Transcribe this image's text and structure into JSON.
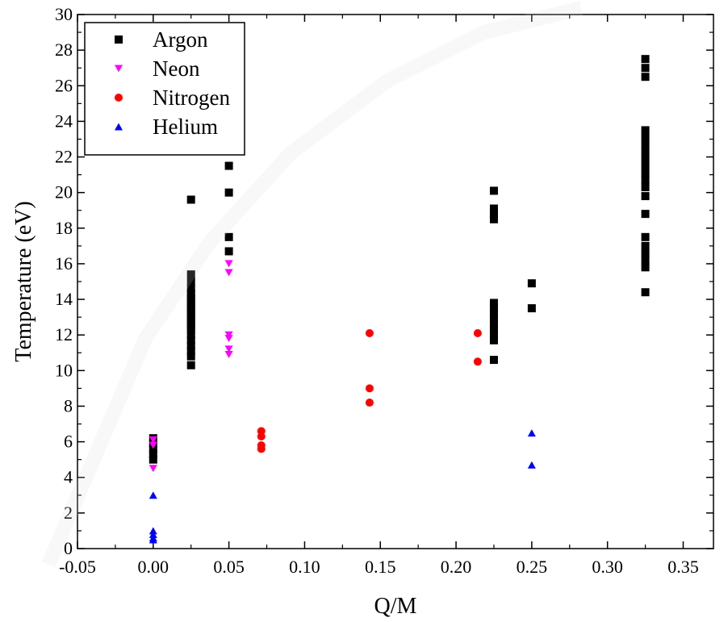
{
  "chart_data": {
    "type": "scatter",
    "xlabel": "Q/M",
    "ylabel": "Temperature (eV)",
    "xlim": [
      -0.05,
      0.37
    ],
    "ylim": [
      0,
      30
    ],
    "x_ticks": [
      -0.05,
      0.0,
      0.05,
      0.1,
      0.15,
      0.2,
      0.25,
      0.3,
      0.35
    ],
    "x_tick_labels": [
      "-0.05",
      "0.00",
      "0.05",
      "0.10",
      "0.15",
      "0.20",
      "0.25",
      "0.30",
      "0.35"
    ],
    "y_ticks": [
      0,
      2,
      4,
      6,
      8,
      10,
      12,
      14,
      16,
      18,
      20,
      22,
      24,
      26,
      28,
      30
    ],
    "y_tick_labels": [
      "0",
      "2",
      "4",
      "6",
      "8",
      "10",
      "12",
      "14",
      "16",
      "18",
      "20",
      "22",
      "24",
      "26",
      "28",
      "30"
    ],
    "grid": false,
    "legend_position": "top-left",
    "series": [
      {
        "name": "Argon",
        "marker": "square",
        "color": "#000000",
        "points": [
          [
            0.025,
            19.6
          ],
          [
            0.025,
            15.4
          ],
          [
            0.025,
            15.0
          ],
          [
            0.025,
            14.6
          ],
          [
            0.025,
            14.3
          ],
          [
            0.025,
            14.1
          ],
          [
            0.025,
            13.9
          ],
          [
            0.025,
            13.7
          ],
          [
            0.025,
            13.5
          ],
          [
            0.025,
            13.3
          ],
          [
            0.025,
            13.1
          ],
          [
            0.025,
            12.9
          ],
          [
            0.025,
            12.7
          ],
          [
            0.025,
            12.5
          ],
          [
            0.025,
            12.3
          ],
          [
            0.025,
            12.0
          ],
          [
            0.025,
            11.7
          ],
          [
            0.025,
            11.4
          ],
          [
            0.025,
            11.1
          ],
          [
            0.025,
            10.8
          ],
          [
            0.025,
            10.3
          ],
          [
            0.05,
            21.5
          ],
          [
            0.05,
            20.0
          ],
          [
            0.05,
            17.5
          ],
          [
            0.05,
            16.7
          ],
          [
            0.0,
            6.2
          ],
          [
            0.0,
            5.9
          ],
          [
            0.0,
            5.6
          ],
          [
            0.0,
            5.3
          ],
          [
            0.0,
            5.0
          ],
          [
            0.225,
            20.1
          ],
          [
            0.225,
            19.1
          ],
          [
            0.225,
            18.8
          ],
          [
            0.225,
            18.5
          ],
          [
            0.225,
            13.8
          ],
          [
            0.225,
            13.5
          ],
          [
            0.225,
            13.2
          ],
          [
            0.225,
            12.9
          ],
          [
            0.225,
            12.6
          ],
          [
            0.225,
            12.3
          ],
          [
            0.225,
            12.0
          ],
          [
            0.225,
            11.7
          ],
          [
            0.225,
            10.6
          ],
          [
            0.25,
            14.9
          ],
          [
            0.25,
            13.5
          ],
          [
            0.325,
            27.5
          ],
          [
            0.325,
            27.0
          ],
          [
            0.325,
            26.5
          ],
          [
            0.325,
            23.5
          ],
          [
            0.325,
            23.1
          ],
          [
            0.325,
            22.7
          ],
          [
            0.325,
            22.3
          ],
          [
            0.325,
            21.9
          ],
          [
            0.325,
            21.5
          ],
          [
            0.325,
            21.1
          ],
          [
            0.325,
            20.7
          ],
          [
            0.325,
            20.3
          ],
          [
            0.325,
            19.8
          ],
          [
            0.325,
            18.8
          ],
          [
            0.325,
            17.5
          ],
          [
            0.325,
            17.0
          ],
          [
            0.325,
            16.6
          ],
          [
            0.325,
            16.2
          ],
          [
            0.325,
            15.8
          ],
          [
            0.325,
            14.4
          ]
        ]
      },
      {
        "name": "Neon",
        "marker": "triangle-down",
        "color": "#ff00ff",
        "points": [
          [
            0.05,
            16.0
          ],
          [
            0.05,
            15.5
          ],
          [
            0.05,
            12.0
          ],
          [
            0.05,
            11.8
          ],
          [
            0.05,
            11.2
          ],
          [
            0.05,
            10.9
          ],
          [
            0.0,
            6.1
          ],
          [
            0.0,
            5.8
          ],
          [
            0.0,
            4.5
          ]
        ]
      },
      {
        "name": "Nitrogen",
        "marker": "circle",
        "color": "#ff0000",
        "points": [
          [
            0.0714,
            6.6
          ],
          [
            0.0714,
            6.3
          ],
          [
            0.0714,
            5.8
          ],
          [
            0.0714,
            5.6
          ],
          [
            0.1429,
            12.1
          ],
          [
            0.1429,
            9.0
          ],
          [
            0.1429,
            8.2
          ],
          [
            0.2143,
            12.1
          ],
          [
            0.2143,
            10.5
          ]
        ]
      },
      {
        "name": "Helium",
        "marker": "triangle-up",
        "color": "#0000ff",
        "points": [
          [
            0.0,
            3.0
          ],
          [
            0.0,
            1.0
          ],
          [
            0.0,
            0.8
          ],
          [
            0.0,
            0.6
          ],
          [
            0.0,
            0.5
          ],
          [
            0.25,
            6.5
          ],
          [
            0.25,
            4.7
          ]
        ]
      }
    ]
  }
}
